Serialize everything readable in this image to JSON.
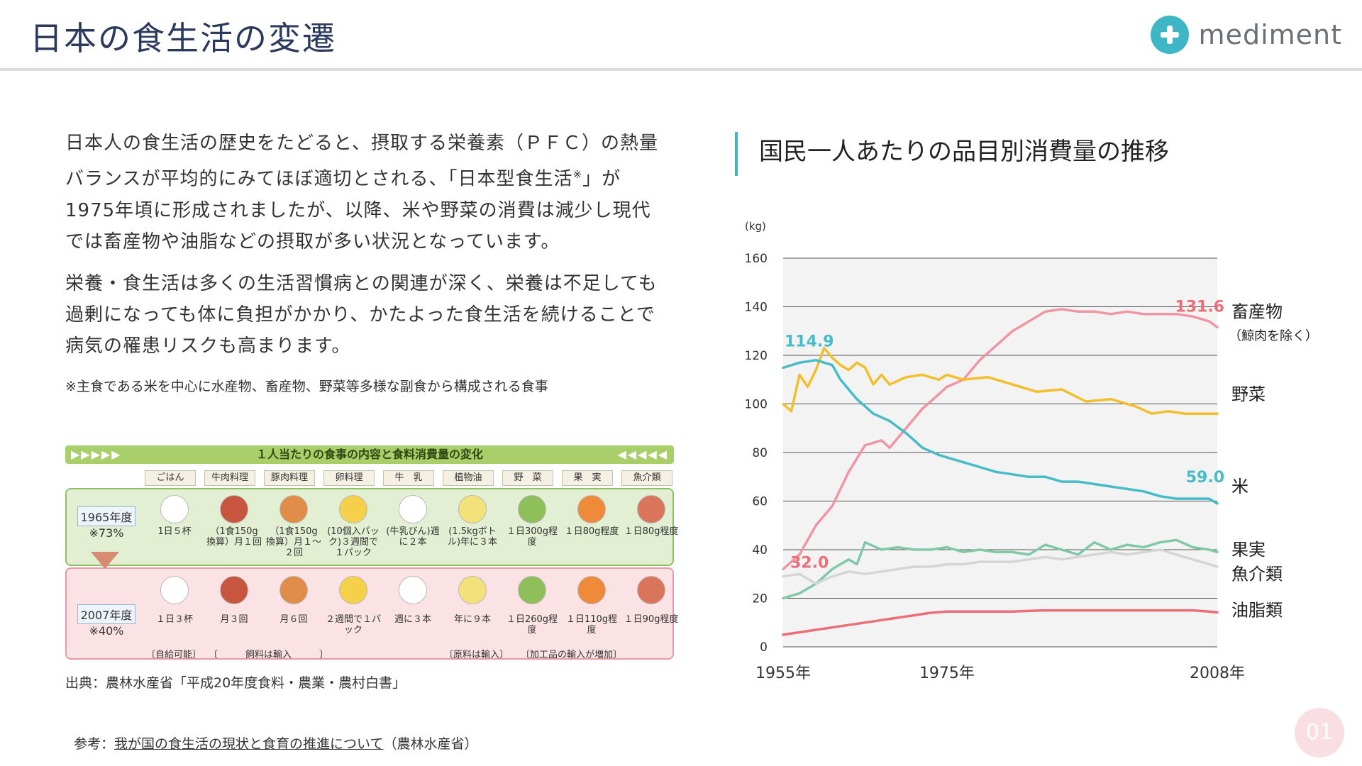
{
  "header": {
    "title": "日本の食生活の変遷",
    "brand_name": "mediment",
    "brand_icon": "plus-icon",
    "accent_color": "#3fb6c6"
  },
  "left": {
    "para1_before": "日本人の食生活の歴史をたどると、摂取する栄養素（ＰＦＣ）の熱量バランスが平均的にみてほぼ適切とされる、「日本型食生活",
    "para1_sup": "※",
    "para1_after": "」が1975年頃に形成されましたが、以降、米や野菜の消費は減少し現代では畜産物や油脂などの摂取が多い状況となっています。",
    "para2": "栄養・食生活は多くの生活習慣病との関連が深く、栄養は不足しても過剰になっても体に負担がかかり、かたよった食生活を続けることで病気の罹患リスクも高まります。",
    "note": "※主食である米を中心に水産物、畜産物、野菜等多様な副食から構成される食事",
    "source": "出典：農林水産省「平成20年度食料・農業・農村白書」",
    "ref_prefix": "参考：",
    "ref_link": "我が国の食生活の現状と食育の推進について",
    "ref_suffix": "（農林水産省）"
  },
  "food_table": {
    "title": "１人当たりの食事の内容と食料消費量の変化",
    "arrows_left": "▶▶▶▶▶",
    "arrows_right": "◀◀◀◀◀",
    "columns": [
      "ごはん",
      "牛肉料理",
      "豚肉料理",
      "卵料理",
      "牛　乳",
      "植物油",
      "野　菜",
      "果　実",
      "魚介類"
    ],
    "rows": [
      {
        "year": "1965年度",
        "ratio": "※73%",
        "cells": [
          "1日５杯",
          "（1食150g換算）月１回",
          "（1食150g換算）月１～２回",
          "(10個入パック)３週間で１パック",
          "(牛乳びん)週に２本",
          "(1.5kgボトル)年に３本",
          "１日300g程度",
          "１日80g程度",
          "１日80g程度"
        ]
      },
      {
        "year": "2007年度",
        "ratio": "※40%",
        "cells": [
          "１日３杯",
          "月３回",
          "月６回",
          "２週間で１パック",
          "週に３本",
          "年に９本",
          "１日260g程度",
          "１日110g程度",
          "１日90g程度"
        ]
      }
    ],
    "notes": [
      "〔自給可能〕",
      "〔　　　飼料は輸入　　　〕",
      "〔原料は輸入〕",
      "〔加工品の輸入が増加〕"
    ]
  },
  "chart_heading": "国民一人あたりの品目別消費量の推移",
  "chart_data": {
    "type": "line",
    "ylabel": "(kg)",
    "ylim": [
      0,
      160
    ],
    "yticks": [
      0,
      20,
      40,
      60,
      80,
      100,
      120,
      140,
      160
    ],
    "xlim": [
      1955,
      2008
    ],
    "xtick_labels": [
      "1955年",
      "1975年",
      "2008年"
    ],
    "xticks": [
      1955,
      1975,
      2008
    ],
    "grid": true,
    "series": [
      {
        "name": "畜産物",
        "name_sub": "（鯨肉を除く）",
        "color": "#ef95a4",
        "x": [
          1955,
          1957,
          1959,
          1961,
          1963,
          1965,
          1967,
          1968,
          1970,
          1972,
          1974,
          1975,
          1977,
          1979,
          1981,
          1983,
          1985,
          1987,
          1989,
          1991,
          1993,
          1995,
          1997,
          1999,
          2001,
          2003,
          2005,
          2007,
          2008
        ],
        "values": [
          32.0,
          38,
          50,
          58,
          72,
          83,
          85,
          82,
          90,
          98,
          104,
          107,
          110,
          118,
          124,
          130,
          134,
          138,
          139,
          138,
          138,
          137,
          138,
          137,
          137,
          137,
          136,
          134,
          131.6
        ]
      },
      {
        "name": "野菜",
        "color": "#f2bf2a",
        "x": [
          1955,
          1956,
          1957,
          1958,
          1959,
          1960,
          1961,
          1962,
          1963,
          1964,
          1965,
          1966,
          1967,
          1968,
          1970,
          1972,
          1974,
          1975,
          1977,
          1980,
          1983,
          1986,
          1989,
          1992,
          1995,
          1998,
          2000,
          2002,
          2004,
          2006,
          2008
        ],
        "values": [
          100,
          97,
          112,
          107,
          114,
          123,
          119,
          116,
          114,
          117,
          115,
          108,
          112,
          108,
          111,
          112,
          110,
          112,
          110,
          111,
          108,
          105,
          106,
          101,
          102,
          99,
          96,
          97,
          96,
          96,
          96
        ]
      },
      {
        "name": "米",
        "color": "#46bcc9",
        "x": [
          1955,
          1957,
          1959,
          1961,
          1962,
          1964,
          1966,
          1968,
          1970,
          1972,
          1974,
          1975,
          1977,
          1979,
          1981,
          1983,
          1985,
          1987,
          1989,
          1991,
          1993,
          1995,
          1997,
          1999,
          2001,
          2003,
          2005,
          2007,
          2008
        ],
        "values": [
          114.9,
          117,
          118,
          116,
          110,
          102,
          96,
          93,
          88,
          82,
          79,
          78,
          76,
          74,
          72,
          71,
          70,
          70,
          68,
          68,
          67,
          66,
          65,
          64,
          62,
          61,
          61,
          61,
          59.0
        ]
      },
      {
        "name": "果実",
        "color": "#7fc9a8",
        "x": [
          1955,
          1957,
          1959,
          1961,
          1963,
          1964,
          1965,
          1967,
          1969,
          1971,
          1973,
          1975,
          1977,
          1979,
          1981,
          1983,
          1985,
          1987,
          1989,
          1991,
          1993,
          1995,
          1997,
          1999,
          2001,
          2003,
          2005,
          2007,
          2008
        ],
        "values": [
          20,
          22,
          26,
          32,
          36,
          34,
          43,
          40,
          41,
          40,
          40,
          41,
          39,
          40,
          39,
          39,
          38,
          42,
          40,
          38,
          43,
          40,
          42,
          41,
          43,
          44,
          41,
          40,
          39
        ]
      },
      {
        "name": "魚介類",
        "color": "#d5d5d5",
        "x": [
          1955,
          1957,
          1959,
          1961,
          1963,
          1965,
          1967,
          1969,
          1971,
          1973,
          1975,
          1977,
          1979,
          1981,
          1983,
          1985,
          1987,
          1989,
          1991,
          1993,
          1995,
          1997,
          1999,
          2001,
          2003,
          2005,
          2007,
          2008
        ],
        "values": [
          29,
          30,
          26,
          29,
          31,
          30,
          31,
          32,
          33,
          33,
          34,
          34,
          35,
          35,
          35,
          36,
          37,
          36,
          37,
          38,
          39,
          38,
          39,
          40,
          38,
          36,
          34,
          33
        ]
      },
      {
        "name": "油脂類",
        "color": "#ea6f78",
        "x": [
          1955,
          1957,
          1959,
          1961,
          1963,
          1965,
          1967,
          1969,
          1971,
          1973,
          1975,
          1977,
          1979,
          1981,
          1983,
          1985,
          1987,
          1989,
          1991,
          1993,
          1995,
          1997,
          1999,
          2001,
          2003,
          2005,
          2007,
          2008
        ],
        "values": [
          5,
          6,
          7,
          8,
          9,
          10,
          11,
          12,
          13,
          14,
          14.5,
          14.5,
          14.5,
          14.5,
          14.5,
          14.8,
          15,
          15,
          15,
          15,
          15,
          15,
          15,
          15,
          15,
          15,
          14.5,
          14.2
        ]
      }
    ],
    "annotations": [
      {
        "text": "114.9",
        "series": "米",
        "x": 1955,
        "y": 114.9,
        "color": "#46bcc9"
      },
      {
        "text": "32.0",
        "series": "畜産物",
        "x": 1955,
        "y": 32.0,
        "color": "#ea6f78"
      },
      {
        "text": "131.6",
        "series": "畜産物",
        "x": 2008,
        "y": 131.6,
        "color": "#ea6f78"
      },
      {
        "text": "59.0",
        "series": "米",
        "x": 2008,
        "y": 59.0,
        "color": "#46bcc9"
      }
    ]
  },
  "page_number": "01"
}
